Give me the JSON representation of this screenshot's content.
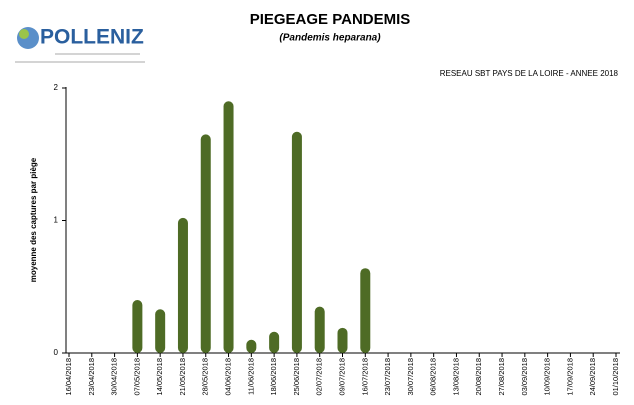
{
  "logo": "POLLENIZ",
  "chart_data": {
    "type": "bar",
    "title": "PIEGEAGE PANDEMIS",
    "subtitle": "(Pandemis heparana)",
    "annotation": "RESEAU SBT PAYS DE LA LOIRE - ANNEE 2018",
    "ylabel": "moyenne des captures par piège",
    "categories": [
      "16/04/2018",
      "23/04/2018",
      "30/04/2018",
      "07/05/2018",
      "14/05/2018",
      "21/05/2018",
      "28/05/2018",
      "04/06/2018",
      "11/06/2018",
      "18/06/2018",
      "25/06/2018",
      "02/07/2018",
      "09/07/2018",
      "16/07/2018",
      "23/07/2018",
      "30/07/2018",
      "06/08/2018",
      "13/08/2018",
      "20/08/2018",
      "27/08/2018",
      "03/09/2018",
      "10/09/2018",
      "17/09/2018",
      "24/09/2018",
      "01/10/2018"
    ],
    "values": [
      null,
      null,
      null,
      0.4,
      0.33,
      1.02,
      1.65,
      1.9,
      0.1,
      0.16,
      1.67,
      0.35,
      0.19,
      0.64,
      null,
      null,
      null,
      null,
      null,
      null,
      null,
      null,
      null,
      null,
      null
    ],
    "color": "#4e6b25",
    "ylim": [
      0,
      2
    ],
    "yticks": [
      0,
      1,
      2
    ],
    "grid": false
  }
}
